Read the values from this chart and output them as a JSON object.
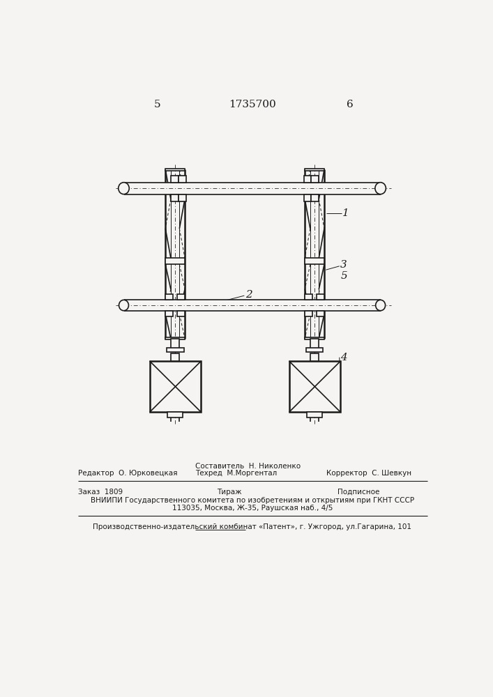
{
  "bg_color": "#f5f4f2",
  "line_color": "#1a1a1a",
  "lw": 1.2,
  "lw_thin": 0.7,
  "lw_thick": 1.8,
  "page_number_left": "5",
  "page_number_center": "1735700",
  "page_number_right": "6",
  "label1": "1",
  "label2": "2",
  "label3": "3",
  "label4": "4",
  "label5": "5",
  "footer_line1_center_a": "Составитель  Н. Николенко",
  "footer_line1_center_b": "Техред  М.Моргентал",
  "footer_line1_left": "Редактор  О. Юрковецкая",
  "footer_line1_right": "Корректор  С. Шевкун",
  "footer_line2_left": "Заказ  1809",
  "footer_line2_center": "Тираж",
  "footer_line2_right": "Подписное",
  "footer_line3": "ВНИИПИ Государственного комитета по изобретениям и открытиям при ГКНТ СССР",
  "footer_line4": "113035, Москва, Ж-35, Раушская наб., 4/5",
  "footer_line5": "Производственно-издательский комбинат «Патент», г. Ужгород, ул.Гагарина, 101"
}
